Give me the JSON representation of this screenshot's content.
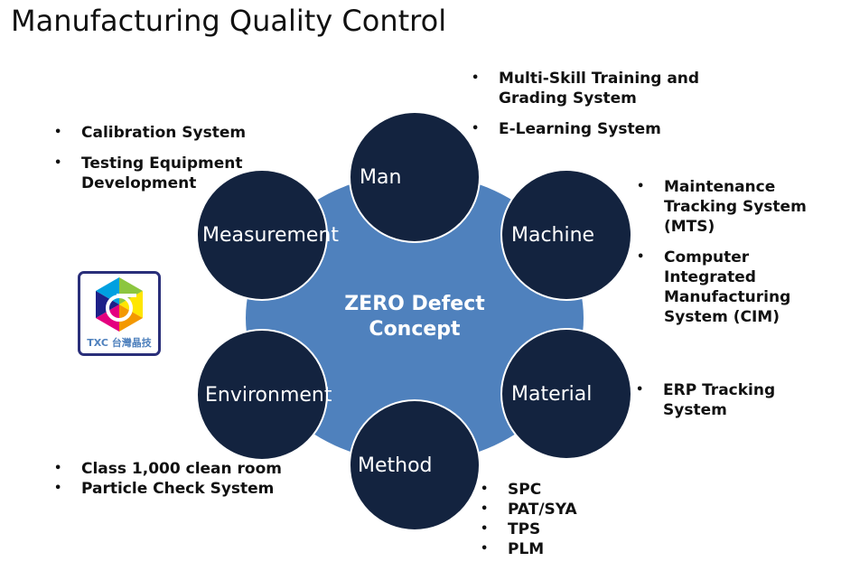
{
  "title": "Manufacturing Quality Control",
  "center": {
    "line1": "ZERO Defect",
    "line2": "Concept"
  },
  "nodes": {
    "man": "Man",
    "machine": "Machine",
    "material": "Material",
    "method": "Method",
    "environment": "Environment",
    "measurement": "Measurement"
  },
  "lists": {
    "man": [
      "Multi-Skill Training and Grading System",
      "E-Learning System"
    ],
    "machine": [
      "Maintenance Tracking System (MTS)",
      "Computer Integrated Manufacturing System (CIM)"
    ],
    "material": [
      "ERP Tracking System"
    ],
    "method": [
      "SPC",
      "PAT/SYA",
      "TPS",
      "PLM"
    ],
    "environment": [
      "Class 1,000 clean room",
      "Particle Check System"
    ],
    "measurement": [
      "Calibration System",
      "Testing Equipment Development"
    ]
  },
  "logo": {
    "text": "TXC 台灣晶技",
    "symbol": "σ"
  },
  "colors": {
    "outer": "#4f81bd",
    "node": "#13233f"
  }
}
